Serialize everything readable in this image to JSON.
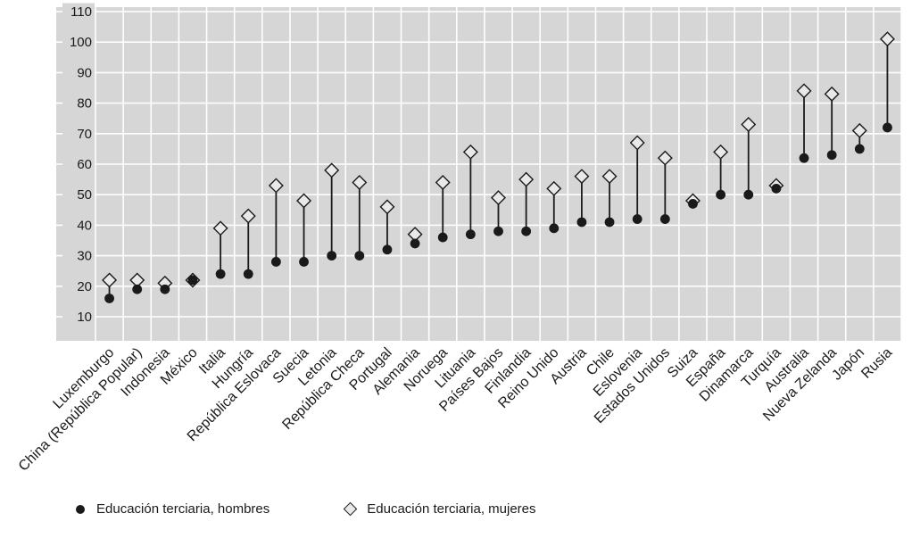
{
  "chart_data": {
    "type": "scatter",
    "subtype": "dumbbell",
    "title": "",
    "xlabel": "",
    "ylabel": "",
    "ylim": [
      10,
      110
    ],
    "yticks": [
      110,
      100,
      90,
      80,
      70,
      60,
      50,
      40,
      30,
      20,
      10
    ],
    "grid": true,
    "legend_position": "bottom",
    "categories": [
      "Luxemburgo",
      "China (República Popular)",
      "Indonesia",
      "México",
      "Italia",
      "Hungría",
      "República Eslovaca",
      "Suecia",
      "Letonia",
      "República Checa",
      "Portugal",
      "Alemania",
      "Noruega",
      "Lituania",
      "Países Bajos",
      "Finlandia",
      "Reino Unido",
      "Austria",
      "Chile",
      "Eslovenia",
      "Estados Unidos",
      "Suiza",
      "España",
      "Dinamarca",
      "Turquía",
      "Australia",
      "Nueva Zelanda",
      "Japón",
      "Rusia"
    ],
    "series": [
      {
        "name": "Educación terciaria, hombres",
        "marker": "filled-circle",
        "values": [
          16,
          19,
          19,
          22,
          24,
          24,
          28,
          28,
          30,
          30,
          32,
          34,
          36,
          37,
          38,
          38,
          39,
          41,
          41,
          42,
          42,
          47,
          50,
          50,
          52,
          62,
          63,
          65,
          72
        ]
      },
      {
        "name": "Educación terciaria, mujeres",
        "marker": "open-diamond",
        "values": [
          22,
          22,
          21,
          22,
          39,
          43,
          53,
          48,
          58,
          54,
          46,
          37,
          54,
          64,
          49,
          55,
          52,
          56,
          56,
          67,
          62,
          48,
          64,
          73,
          53,
          84,
          83,
          71,
          101
        ]
      }
    ],
    "colors": {
      "plot_background": "#d6d6d6",
      "gridline": "#ffffff",
      "hombres_marker": "#1a1a1a",
      "mujeres_fill": "#e9e9e9",
      "mujeres_stroke": "#1a1a1a",
      "stem": "#1a1a1a",
      "text": "#1a1a1a"
    }
  }
}
